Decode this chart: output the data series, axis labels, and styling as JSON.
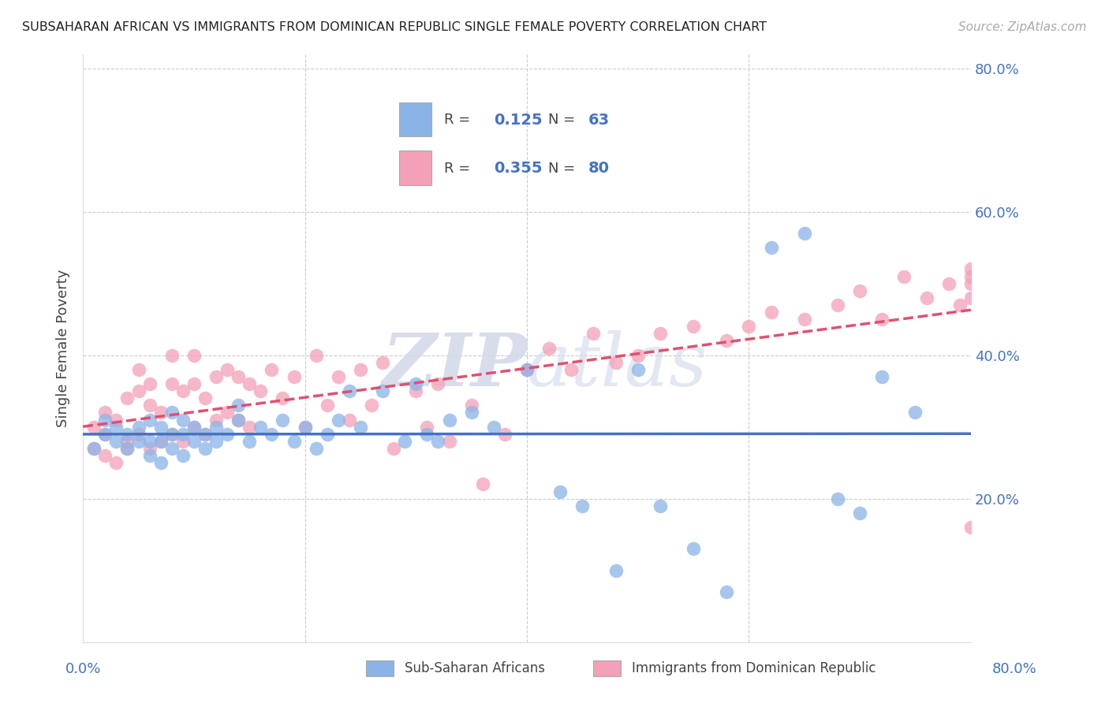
{
  "title": "SUBSAHARAN AFRICAN VS IMMIGRANTS FROM DOMINICAN REPUBLIC SINGLE FEMALE POVERTY CORRELATION CHART",
  "source": "Source: ZipAtlas.com",
  "ylabel": "Single Female Poverty",
  "legend_label1": "Sub-Saharan Africans",
  "legend_label2": "Immigrants from Dominican Republic",
  "R1": 0.125,
  "N1": 63,
  "R2": 0.355,
  "N2": 80,
  "xlim": [
    0.0,
    0.8
  ],
  "ylim": [
    0.0,
    0.82
  ],
  "color_blue": "#8ab4e8",
  "color_pink": "#f4a0b8",
  "color_blue_line": "#4472c4",
  "color_pink_line": "#e05070",
  "ytick_positions": [
    0.0,
    0.2,
    0.4,
    0.6,
    0.8
  ],
  "ytick_labels": [
    "",
    "20.0%",
    "40.0%",
    "60.0%",
    "80.0%"
  ],
  "grid_color": "#cccccc",
  "background_color": "#ffffff",
  "watermark_color": "#d0d8e8",
  "blue_x": [
    0.01,
    0.02,
    0.02,
    0.03,
    0.03,
    0.04,
    0.04,
    0.05,
    0.05,
    0.06,
    0.06,
    0.06,
    0.07,
    0.07,
    0.07,
    0.08,
    0.08,
    0.08,
    0.09,
    0.09,
    0.09,
    0.1,
    0.1,
    0.11,
    0.11,
    0.12,
    0.12,
    0.13,
    0.14,
    0.14,
    0.15,
    0.16,
    0.17,
    0.18,
    0.19,
    0.2,
    0.21,
    0.22,
    0.23,
    0.24,
    0.25,
    0.27,
    0.29,
    0.3,
    0.31,
    0.32,
    0.33,
    0.35,
    0.37,
    0.4,
    0.43,
    0.45,
    0.48,
    0.5,
    0.52,
    0.55,
    0.58,
    0.62,
    0.65,
    0.68,
    0.7,
    0.72,
    0.75
  ],
  "blue_y": [
    0.27,
    0.29,
    0.31,
    0.28,
    0.3,
    0.27,
    0.29,
    0.28,
    0.3,
    0.26,
    0.28,
    0.31,
    0.25,
    0.28,
    0.3,
    0.27,
    0.29,
    0.32,
    0.26,
    0.29,
    0.31,
    0.28,
    0.3,
    0.27,
    0.29,
    0.28,
    0.3,
    0.29,
    0.31,
    0.33,
    0.28,
    0.3,
    0.29,
    0.31,
    0.28,
    0.3,
    0.27,
    0.29,
    0.31,
    0.35,
    0.3,
    0.35,
    0.28,
    0.36,
    0.29,
    0.28,
    0.31,
    0.32,
    0.3,
    0.38,
    0.21,
    0.19,
    0.1,
    0.38,
    0.19,
    0.13,
    0.07,
    0.55,
    0.57,
    0.2,
    0.18,
    0.37,
    0.32
  ],
  "pink_x": [
    0.01,
    0.01,
    0.02,
    0.02,
    0.02,
    0.03,
    0.03,
    0.04,
    0.04,
    0.04,
    0.05,
    0.05,
    0.05,
    0.06,
    0.06,
    0.06,
    0.07,
    0.07,
    0.08,
    0.08,
    0.08,
    0.09,
    0.09,
    0.1,
    0.1,
    0.1,
    0.11,
    0.11,
    0.12,
    0.12,
    0.13,
    0.13,
    0.14,
    0.14,
    0.15,
    0.15,
    0.16,
    0.17,
    0.18,
    0.19,
    0.2,
    0.21,
    0.22,
    0.23,
    0.24,
    0.25,
    0.26,
    0.27,
    0.28,
    0.3,
    0.31,
    0.32,
    0.33,
    0.35,
    0.36,
    0.38,
    0.4,
    0.42,
    0.44,
    0.46,
    0.48,
    0.5,
    0.52,
    0.55,
    0.58,
    0.6,
    0.62,
    0.65,
    0.68,
    0.7,
    0.72,
    0.74,
    0.76,
    0.78,
    0.79,
    0.8,
    0.8,
    0.8,
    0.8,
    0.8
  ],
  "pink_y": [
    0.27,
    0.3,
    0.26,
    0.29,
    0.32,
    0.25,
    0.31,
    0.28,
    0.34,
    0.27,
    0.29,
    0.35,
    0.38,
    0.27,
    0.33,
    0.36,
    0.28,
    0.32,
    0.29,
    0.36,
    0.4,
    0.28,
    0.35,
    0.3,
    0.36,
    0.4,
    0.29,
    0.34,
    0.31,
    0.37,
    0.32,
    0.38,
    0.31,
    0.37,
    0.3,
    0.36,
    0.35,
    0.38,
    0.34,
    0.37,
    0.3,
    0.4,
    0.33,
    0.37,
    0.31,
    0.38,
    0.33,
    0.39,
    0.27,
    0.35,
    0.3,
    0.36,
    0.28,
    0.33,
    0.22,
    0.29,
    0.38,
    0.41,
    0.38,
    0.43,
    0.39,
    0.4,
    0.43,
    0.44,
    0.42,
    0.44,
    0.46,
    0.45,
    0.47,
    0.49,
    0.45,
    0.51,
    0.48,
    0.5,
    0.47,
    0.5,
    0.52,
    0.48,
    0.51,
    0.16
  ]
}
